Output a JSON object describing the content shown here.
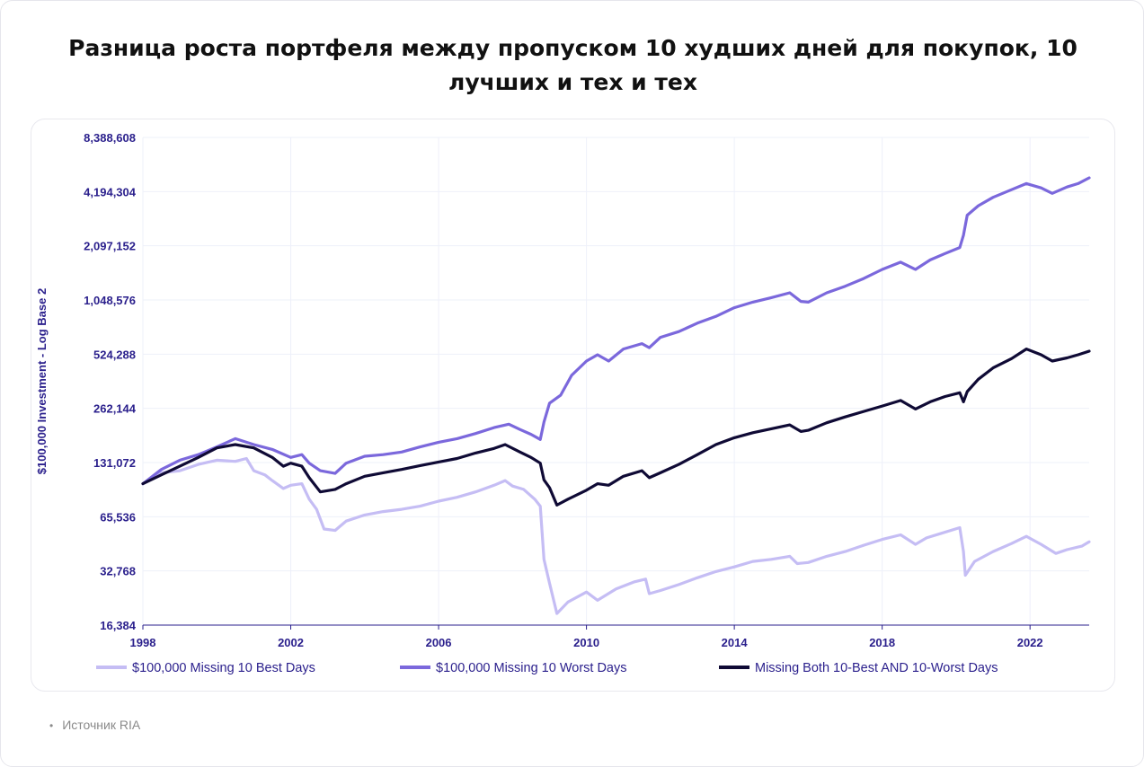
{
  "title": "Разница роста портфеля между пропуском 10 худших дней для покупок, 10 лучших и тех и тех",
  "source": "Источник RIA",
  "chart_data": {
    "type": "line",
    "ylabel": "$100,000 Investment - Log Base 2",
    "yscale": "log2",
    "ylim": [
      16384,
      8388608
    ],
    "xlim": [
      1998,
      2023.6
    ],
    "x_ticks": [
      "1998",
      "2002",
      "2006",
      "2010",
      "2014",
      "2018",
      "2022"
    ],
    "y_ticks": [
      "8,388,608",
      "4,194,304",
      "2,097,152",
      "1,048,576",
      "524,288",
      "262,144",
      "131,072",
      "65,536",
      "32,768",
      "16,384"
    ],
    "legend_position": "bottom",
    "series": [
      {
        "name": "$100,000 Missing 10 Best Days",
        "color": "#c5bdf4",
        "points": [
          [
            1998.0,
            100000
          ],
          [
            1998.5,
            115000
          ],
          [
            1999.0,
            118000
          ],
          [
            1999.5,
            128000
          ],
          [
            2000.0,
            135000
          ],
          [
            2000.5,
            133000
          ],
          [
            2000.8,
            138000
          ],
          [
            2001.0,
            118000
          ],
          [
            2001.3,
            112000
          ],
          [
            2001.5,
            104000
          ],
          [
            2001.8,
            94000
          ],
          [
            2002.0,
            98000
          ],
          [
            2002.3,
            100000
          ],
          [
            2002.5,
            82000
          ],
          [
            2002.7,
            72000
          ],
          [
            2002.9,
            56000
          ],
          [
            2003.2,
            55000
          ],
          [
            2003.5,
            62000
          ],
          [
            2004.0,
            67000
          ],
          [
            2004.5,
            70000
          ],
          [
            2005.0,
            72000
          ],
          [
            2005.5,
            75000
          ],
          [
            2006.0,
            80000
          ],
          [
            2006.5,
            84000
          ],
          [
            2007.0,
            90000
          ],
          [
            2007.5,
            98000
          ],
          [
            2007.8,
            104000
          ],
          [
            2008.0,
            97000
          ],
          [
            2008.3,
            93000
          ],
          [
            2008.6,
            82000
          ],
          [
            2008.75,
            75000
          ],
          [
            2008.85,
            38000
          ],
          [
            2009.0,
            28000
          ],
          [
            2009.2,
            19000
          ],
          [
            2009.5,
            22000
          ],
          [
            2010.0,
            25000
          ],
          [
            2010.3,
            22500
          ],
          [
            2010.8,
            26000
          ],
          [
            2011.3,
            28500
          ],
          [
            2011.6,
            29500
          ],
          [
            2011.7,
            24500
          ],
          [
            2012.0,
            25500
          ],
          [
            2012.5,
            27500
          ],
          [
            2013.0,
            30000
          ],
          [
            2013.5,
            32500
          ],
          [
            2014.0,
            34500
          ],
          [
            2014.5,
            37000
          ],
          [
            2015.0,
            38000
          ],
          [
            2015.5,
            39500
          ],
          [
            2015.7,
            36000
          ],
          [
            2016.0,
            36500
          ],
          [
            2016.5,
            39500
          ],
          [
            2017.0,
            42000
          ],
          [
            2017.5,
            45500
          ],
          [
            2018.0,
            49000
          ],
          [
            2018.5,
            52000
          ],
          [
            2018.9,
            46000
          ],
          [
            2019.2,
            50000
          ],
          [
            2019.6,
            53000
          ],
          [
            2020.1,
            57000
          ],
          [
            2020.2,
            42000
          ],
          [
            2020.25,
            31000
          ],
          [
            2020.5,
            37000
          ],
          [
            2021.0,
            42000
          ],
          [
            2021.5,
            46500
          ],
          [
            2021.9,
            51000
          ],
          [
            2022.3,
            46000
          ],
          [
            2022.7,
            41000
          ],
          [
            2023.0,
            43000
          ],
          [
            2023.4,
            45000
          ],
          [
            2023.6,
            47500
          ]
        ]
      },
      {
        "name": "$100,000 Missing 10 Worst Days",
        "color": "#7b68dc",
        "points": [
          [
            1998.0,
            100000
          ],
          [
            1998.5,
            120000
          ],
          [
            1999.0,
            135000
          ],
          [
            1999.5,
            145000
          ],
          [
            2000.0,
            160000
          ],
          [
            2000.5,
            178000
          ],
          [
            2001.0,
            165000
          ],
          [
            2001.5,
            155000
          ],
          [
            2002.0,
            140000
          ],
          [
            2002.3,
            145000
          ],
          [
            2002.5,
            130000
          ],
          [
            2002.8,
            118000
          ],
          [
            2003.2,
            114000
          ],
          [
            2003.5,
            130000
          ],
          [
            2004.0,
            142000
          ],
          [
            2004.5,
            145000
          ],
          [
            2005.0,
            150000
          ],
          [
            2005.5,
            160000
          ],
          [
            2006.0,
            170000
          ],
          [
            2006.5,
            178000
          ],
          [
            2007.0,
            190000
          ],
          [
            2007.5,
            205000
          ],
          [
            2007.9,
            214000
          ],
          [
            2008.2,
            200000
          ],
          [
            2008.5,
            188000
          ],
          [
            2008.75,
            176000
          ],
          [
            2008.85,
            220000
          ],
          [
            2009.0,
            280000
          ],
          [
            2009.3,
            310000
          ],
          [
            2009.6,
            400000
          ],
          [
            2010.0,
            480000
          ],
          [
            2010.3,
            520000
          ],
          [
            2010.6,
            480000
          ],
          [
            2011.0,
            560000
          ],
          [
            2011.5,
            600000
          ],
          [
            2011.7,
            570000
          ],
          [
            2012.0,
            650000
          ],
          [
            2012.5,
            700000
          ],
          [
            2013.0,
            780000
          ],
          [
            2013.5,
            850000
          ],
          [
            2014.0,
            950000
          ],
          [
            2014.5,
            1020000
          ],
          [
            2015.0,
            1080000
          ],
          [
            2015.5,
            1150000
          ],
          [
            2015.8,
            1030000
          ],
          [
            2016.0,
            1020000
          ],
          [
            2016.5,
            1150000
          ],
          [
            2017.0,
            1250000
          ],
          [
            2017.5,
            1380000
          ],
          [
            2018.0,
            1550000
          ],
          [
            2018.5,
            1700000
          ],
          [
            2018.9,
            1550000
          ],
          [
            2019.3,
            1750000
          ],
          [
            2019.7,
            1900000
          ],
          [
            2020.1,
            2050000
          ],
          [
            2020.2,
            2400000
          ],
          [
            2020.3,
            3100000
          ],
          [
            2020.6,
            3500000
          ],
          [
            2021.0,
            3900000
          ],
          [
            2021.5,
            4300000
          ],
          [
            2021.9,
            4650000
          ],
          [
            2022.3,
            4400000
          ],
          [
            2022.6,
            4100000
          ],
          [
            2023.0,
            4450000
          ],
          [
            2023.3,
            4650000
          ],
          [
            2023.6,
            5000000
          ]
        ]
      },
      {
        "name": "Missing Both 10-Best AND 10-Worst Days",
        "color": "#0f0a35",
        "points": [
          [
            1998.0,
            100000
          ],
          [
            1998.5,
            112000
          ],
          [
            1999.0,
            125000
          ],
          [
            1999.5,
            140000
          ],
          [
            2000.0,
            158000
          ],
          [
            2000.5,
            165000
          ],
          [
            2001.0,
            158000
          ],
          [
            2001.5,
            140000
          ],
          [
            2001.8,
            125000
          ],
          [
            2002.0,
            130000
          ],
          [
            2002.3,
            125000
          ],
          [
            2002.5,
            108000
          ],
          [
            2002.8,
            90000
          ],
          [
            2003.2,
            93000
          ],
          [
            2003.5,
            100000
          ],
          [
            2004.0,
            110000
          ],
          [
            2004.5,
            115000
          ],
          [
            2005.0,
            120000
          ],
          [
            2005.5,
            126000
          ],
          [
            2006.0,
            132000
          ],
          [
            2006.5,
            138000
          ],
          [
            2007.0,
            148000
          ],
          [
            2007.5,
            157000
          ],
          [
            2007.8,
            165000
          ],
          [
            2008.2,
            150000
          ],
          [
            2008.5,
            140000
          ],
          [
            2008.75,
            130000
          ],
          [
            2008.85,
            105000
          ],
          [
            2009.0,
            95000
          ],
          [
            2009.2,
            76000
          ],
          [
            2009.5,
            82000
          ],
          [
            2010.0,
            92000
          ],
          [
            2010.3,
            100000
          ],
          [
            2010.6,
            98000
          ],
          [
            2011.0,
            110000
          ],
          [
            2011.5,
            118000
          ],
          [
            2011.7,
            108000
          ],
          [
            2012.0,
            115000
          ],
          [
            2012.5,
            128000
          ],
          [
            2013.0,
            145000
          ],
          [
            2013.5,
            165000
          ],
          [
            2014.0,
            180000
          ],
          [
            2014.5,
            192000
          ],
          [
            2015.0,
            202000
          ],
          [
            2015.5,
            212000
          ],
          [
            2015.8,
            195000
          ],
          [
            2016.0,
            198000
          ],
          [
            2016.5,
            218000
          ],
          [
            2017.0,
            235000
          ],
          [
            2017.5,
            252000
          ],
          [
            2018.0,
            270000
          ],
          [
            2018.5,
            290000
          ],
          [
            2018.9,
            260000
          ],
          [
            2019.3,
            285000
          ],
          [
            2019.7,
            305000
          ],
          [
            2020.1,
            320000
          ],
          [
            2020.2,
            285000
          ],
          [
            2020.3,
            325000
          ],
          [
            2020.6,
            380000
          ],
          [
            2021.0,
            440000
          ],
          [
            2021.5,
            495000
          ],
          [
            2021.9,
            560000
          ],
          [
            2022.3,
            520000
          ],
          [
            2022.6,
            480000
          ],
          [
            2023.0,
            500000
          ],
          [
            2023.3,
            520000
          ],
          [
            2023.6,
            545000
          ]
        ]
      }
    ]
  }
}
